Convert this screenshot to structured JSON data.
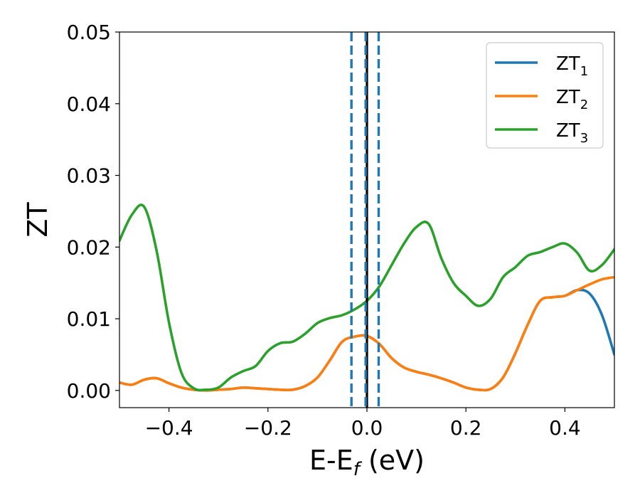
{
  "chart_data": {
    "type": "line",
    "title": "",
    "xlabel": {
      "main": "E-E",
      "sub": "f",
      "suffix": " (eV)"
    },
    "ylabel": "ZT",
    "xlim": [
      -0.5,
      0.5
    ],
    "ylim": [
      -0.0024,
      0.05
    ],
    "xticks": [
      -0.4,
      -0.2,
      0.0,
      0.2,
      0.4
    ],
    "xtick_labels": [
      "−0.4",
      "−0.2",
      "0.0",
      "0.2",
      "0.4"
    ],
    "yticks": [
      0.0,
      0.01,
      0.02,
      0.03,
      0.04,
      0.05
    ],
    "ytick_labels": [
      "0.00",
      "0.01",
      "0.02",
      "0.03",
      "0.04",
      "0.05"
    ],
    "grid": false,
    "legend_position": "top-right",
    "x": [
      -0.5,
      -0.475,
      -0.45,
      -0.425,
      -0.4,
      -0.375,
      -0.35,
      -0.325,
      -0.3,
      -0.275,
      -0.25,
      -0.225,
      -0.2,
      -0.175,
      -0.15,
      -0.125,
      -0.1,
      -0.075,
      -0.05,
      -0.025,
      0.0,
      0.025,
      0.05,
      0.075,
      0.1,
      0.125,
      0.15,
      0.175,
      0.2,
      0.225,
      0.25,
      0.275,
      0.3,
      0.325,
      0.35,
      0.375,
      0.4,
      0.425,
      0.45,
      0.475,
      0.5
    ],
    "series": [
      {
        "name": "ZT",
        "name_sub": "1",
        "color": "#1f77b4",
        "values": [
          0.0011,
          0.0008,
          0.0015,
          0.0017,
          0.001,
          0.0004,
          0.0001,
          0.0,
          0.0001,
          0.0002,
          0.0004,
          0.0003,
          0.0002,
          0.0001,
          0.0001,
          0.0006,
          0.0018,
          0.0042,
          0.0068,
          0.0075,
          0.0076,
          0.0065,
          0.0045,
          0.0032,
          0.0026,
          0.0022,
          0.0017,
          0.0011,
          0.0004,
          0.0001,
          0.0002,
          0.0018,
          0.0052,
          0.0092,
          0.0125,
          0.013,
          0.0132,
          0.014,
          0.0135,
          0.0105,
          0.005
        ]
      },
      {
        "name": "ZT",
        "name_sub": "2",
        "color": "#ff7f0e",
        "values": [
          0.0011,
          0.0008,
          0.0015,
          0.0017,
          0.001,
          0.0004,
          0.0001,
          0.0,
          0.0001,
          0.0002,
          0.0004,
          0.0003,
          0.0002,
          0.0001,
          0.0001,
          0.0006,
          0.0018,
          0.0042,
          0.0068,
          0.0075,
          0.0076,
          0.0065,
          0.0045,
          0.0032,
          0.0026,
          0.0022,
          0.0017,
          0.0011,
          0.0004,
          0.0001,
          0.0002,
          0.0018,
          0.0052,
          0.0092,
          0.0125,
          0.013,
          0.0132,
          0.014,
          0.0148,
          0.0155,
          0.0158
        ]
      },
      {
        "name": "ZT",
        "name_sub": "3",
        "color": "#2ca02c",
        "values": [
          0.0209,
          0.0245,
          0.0256,
          0.0195,
          0.0095,
          0.0025,
          0.0003,
          0.0001,
          0.0004,
          0.0018,
          0.0027,
          0.0034,
          0.0055,
          0.0066,
          0.0068,
          0.0079,
          0.0094,
          0.0101,
          0.0105,
          0.0113,
          0.0125,
          0.0145,
          0.0175,
          0.0205,
          0.0228,
          0.0232,
          0.0185,
          0.015,
          0.0132,
          0.0118,
          0.0128,
          0.0158,
          0.0172,
          0.0188,
          0.0193,
          0.02,
          0.0205,
          0.0192,
          0.0167,
          0.0175,
          0.0197
        ]
      }
    ],
    "vlines": [
      {
        "x": 0.0,
        "color": "#000000",
        "style": "solid"
      },
      {
        "x": -0.0313,
        "color": "#1f77b4",
        "style": "dashed"
      },
      {
        "x": -0.0026,
        "color": "#1f77b4",
        "style": "dashed"
      },
      {
        "x": 0.0237,
        "color": "#1f77b4",
        "style": "dashed"
      }
    ]
  }
}
